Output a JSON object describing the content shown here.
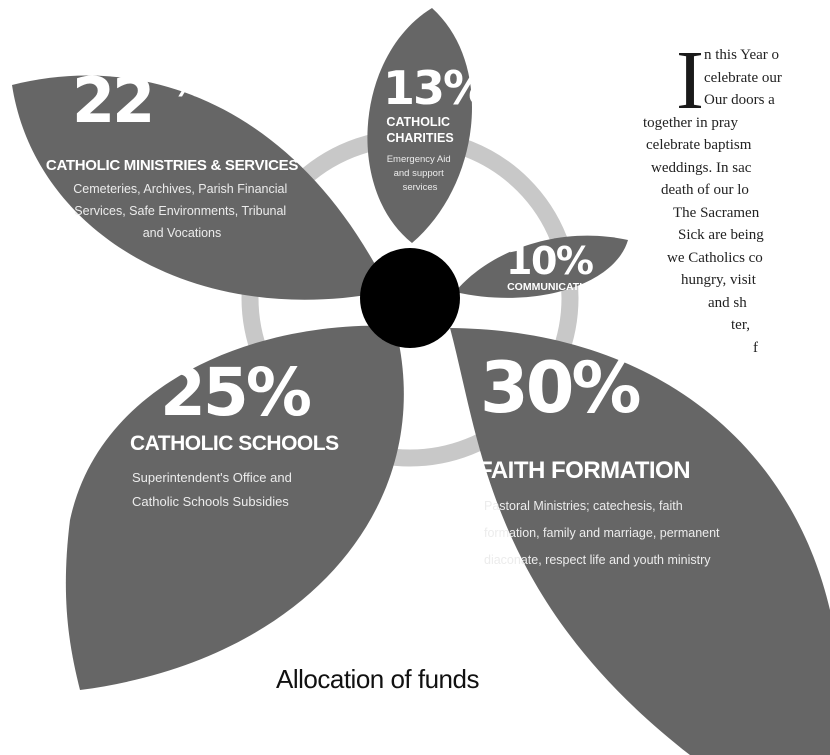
{
  "chart_data": {
    "type": "pie",
    "caption": "Allocation of funds",
    "slices": [
      {
        "value": 22,
        "label": "22%",
        "title": "CATHOLIC MINISTRIES & SERVICES",
        "description": [
          "Cemeteries, Archives, Parish Financial",
          "Services, Safe Environments, Tribunal",
          "and Vocations"
        ]
      },
      {
        "value": 13,
        "label": "13%",
        "title": [
          "CATHOLIC",
          "CHARITIES"
        ],
        "description": [
          "Emergency Aid",
          "and support",
          "services"
        ]
      },
      {
        "value": 10,
        "label": "10%",
        "title": "COMMUNICATIONS",
        "description": []
      },
      {
        "value": 25,
        "label": "25%",
        "title": "CATHOLIC SCHOOLS",
        "description": [
          "Superintendent's Office and",
          "Catholic Schools Subsidies"
        ]
      },
      {
        "value": 30,
        "label": "30%",
        "title": "FAITH FORMATION",
        "description": [
          "Pastoral Ministries; catechesis, faith",
          "formation, family and marriage, permanent",
          "diaconate, respect life and youth ministry"
        ]
      }
    ],
    "colors": {
      "petal": "#666666",
      "ring": "#c8c8c8",
      "center": "#000000",
      "text": "#ffffff"
    }
  },
  "article": {
    "dropcap": "I",
    "lines": [
      "n this Year o",
      "celebrate our",
      "Our doors a",
      "together in pray",
      "celebrate baptism",
      "weddings. In sac",
      "death of our lo",
      "The Sacramen",
      "Sick are being",
      "we Catholics co",
      "hungry, visit",
      "and sh",
      "ter,",
      "f"
    ]
  }
}
